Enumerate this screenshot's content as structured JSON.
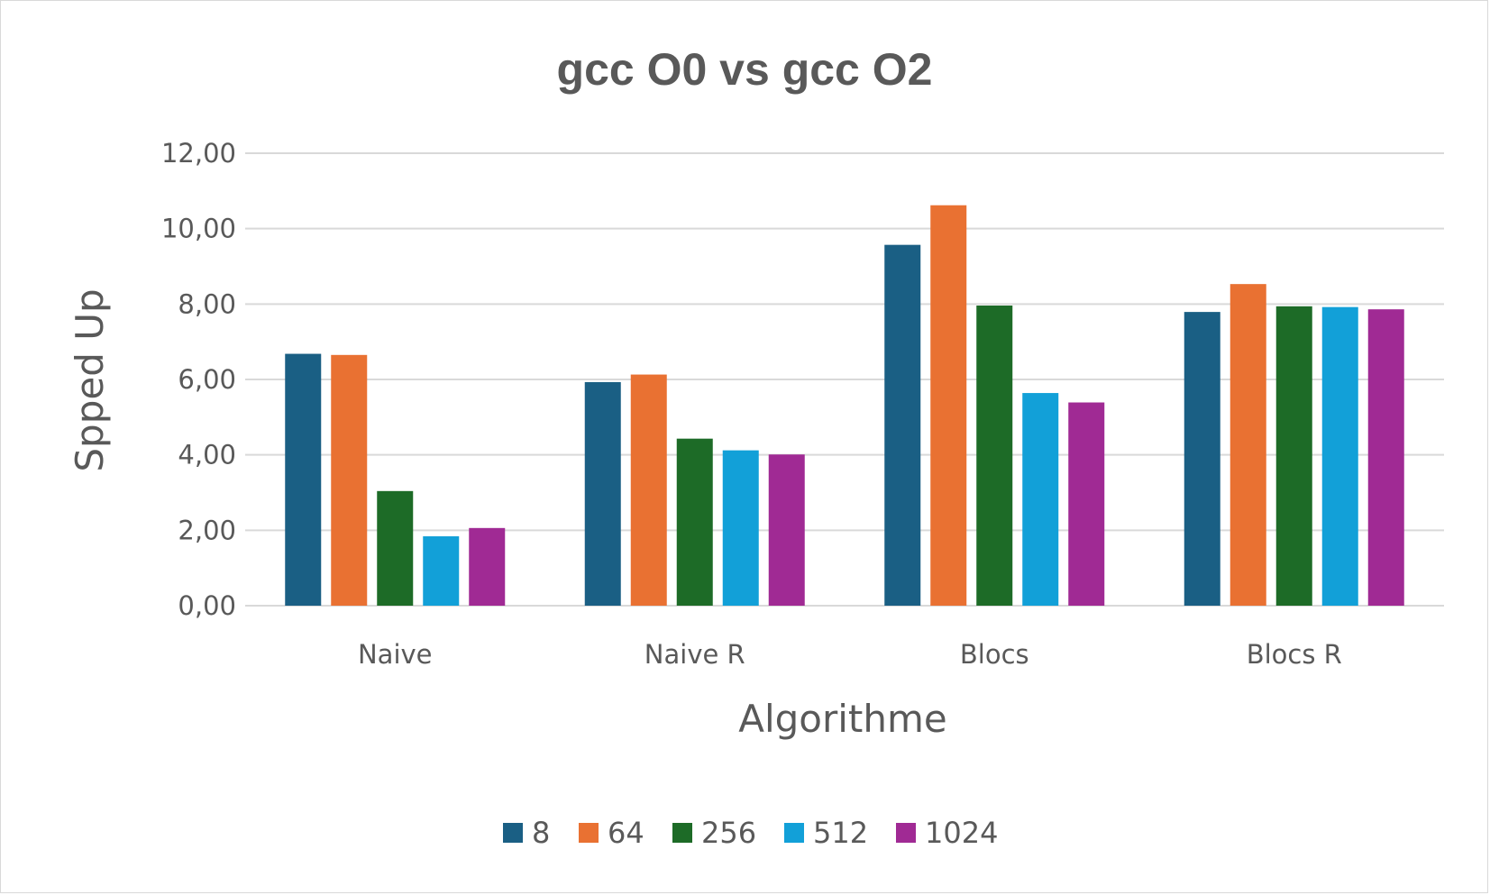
{
  "chart_data": {
    "type": "bar",
    "title": "gcc O0 vs gcc O2",
    "xlabel": "Algorithme",
    "ylabel": "Spped Up",
    "categories": [
      "Naive",
      "Naive R",
      "Blocs",
      "Blocs R"
    ],
    "ylim": [
      0,
      12
    ],
    "yticks": [
      "0,00",
      "2,00",
      "4,00",
      "6,00",
      "8,00",
      "10,00",
      "12,00"
    ],
    "grid": true,
    "legend_position": "bottom",
    "series": [
      {
        "name": "8",
        "color": "#1a5f84",
        "values": [
          6.68,
          5.93,
          9.57,
          7.79
        ]
      },
      {
        "name": "64",
        "color": "#e97132",
        "values": [
          6.65,
          6.13,
          10.62,
          8.53
        ]
      },
      {
        "name": "256",
        "color": "#1d6b27",
        "values": [
          3.04,
          4.43,
          7.96,
          7.94
        ]
      },
      {
        "name": "512",
        "color": "#12a0d8",
        "values": [
          1.84,
          4.12,
          5.64,
          7.92
        ]
      },
      {
        "name": "1024",
        "color": "#a02a94",
        "values": [
          2.06,
          4.01,
          5.39,
          7.86
        ]
      }
    ]
  }
}
